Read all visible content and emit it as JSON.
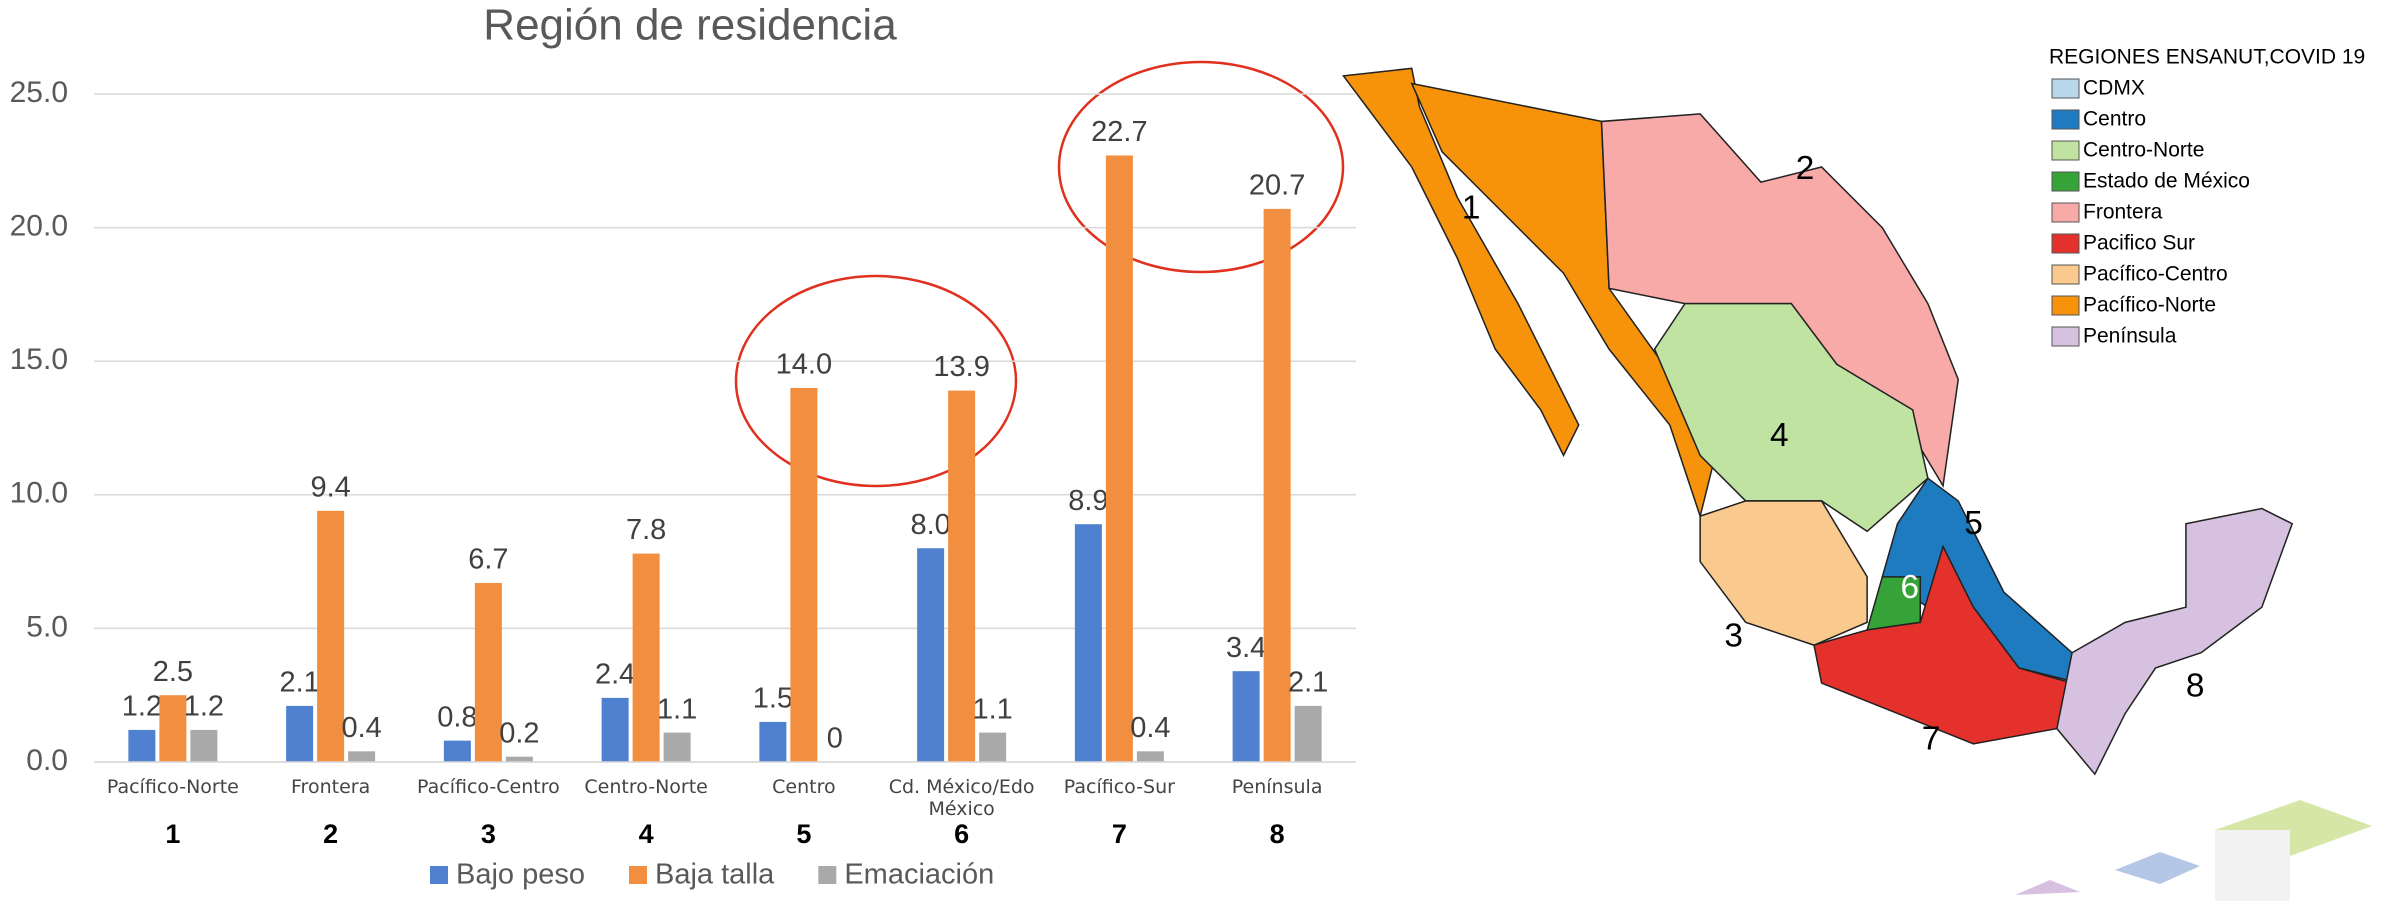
{
  "chart_data": {
    "type": "bar",
    "title": "Región de residencia",
    "categories": [
      "Pacífico-Norte",
      "Frontera",
      "Pacífico-Centro",
      "Centro-Norte",
      "Centro",
      "Cd. México/Edo México",
      "Pacífico-Sur",
      "Península"
    ],
    "category_numbers": [
      "1",
      "2",
      "3",
      "4",
      "5",
      "6",
      "7",
      "8"
    ],
    "series": [
      {
        "name": "Bajo peso",
        "color": "#4f81d0",
        "values": [
          1.2,
          2.1,
          0.8,
          2.4,
          1.5,
          8.0,
          8.9,
          3.4
        ],
        "value_labels": [
          "1.2",
          "2.1",
          "0.8",
          "2.4",
          "1.5",
          "8.0",
          "8.9",
          "3.4"
        ]
      },
      {
        "name": "Baja talla",
        "color": "#f28e3f",
        "values": [
          2.5,
          9.4,
          6.7,
          7.8,
          14.0,
          13.9,
          22.7,
          20.7
        ],
        "value_labels": [
          "2.5",
          "9.4",
          "6.7",
          "7.8",
          "14.0",
          "13.9",
          "22.7",
          "20.7"
        ]
      },
      {
        "name": "Emaciación",
        "color": "#a9a9a9",
        "values": [
          1.2,
          0.4,
          0.2,
          1.1,
          0,
          1.1,
          0.4,
          2.1
        ],
        "value_labels": [
          "1.2",
          "0.4",
          "0.2",
          "1.1",
          "0",
          "1.1",
          "0.4",
          "2.1"
        ]
      }
    ],
    "ylim": [
      0,
      25
    ],
    "yticks": [
      {
        "value": 0,
        "label": "0.0"
      },
      {
        "value": 5,
        "label": "5.0"
      },
      {
        "value": 10,
        "label": "10.0"
      },
      {
        "value": 15,
        "label": "15.0"
      },
      {
        "value": 20,
        "label": "20.0"
      },
      {
        "value": 25,
        "label": "25.0"
      }
    ],
    "grid": true,
    "legend": "bottom"
  },
  "map": {
    "legend_title": "REGIONES ENSANUT,COVID 19",
    "legend_items": [
      {
        "name": "CDMX",
        "color": "#b9d7ea"
      },
      {
        "name": "Centro",
        "color": "#1f7bc0"
      },
      {
        "name": "Centro-Norte",
        "color": "#c0e3a2"
      },
      {
        "name": "Estado de México",
        "color": "#36a338"
      },
      {
        "name": "Frontera",
        "color": "#f7aaa7"
      },
      {
        "name": "Pacifico Sur",
        "color": "#e4312b"
      },
      {
        "name": "Pacífico-Centro",
        "color": "#f9c98e"
      },
      {
        "name": "Pacífico-Norte",
        "color": "#f7930a"
      },
      {
        "name": "Península",
        "color": "#d6c2e0"
      }
    ],
    "region_numbers": [
      "1",
      "2",
      "3",
      "4",
      "5",
      "6",
      "7",
      "8"
    ]
  }
}
